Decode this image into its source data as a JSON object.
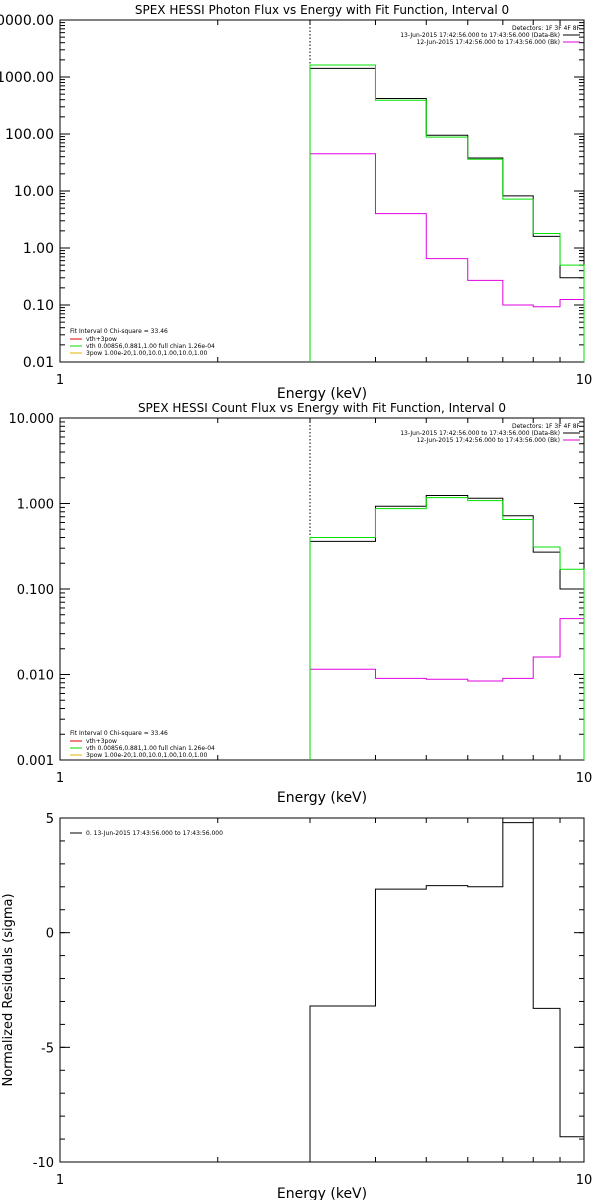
{
  "colors": {
    "bg": "#ffffff",
    "axis": "#000000",
    "data": "#000000",
    "background_series": "#e000e0",
    "model": "#00e000",
    "vth_legend": "#e00000",
    "spow_legend": "#e0b000"
  },
  "chart_data": [
    {
      "type": "line",
      "scale": "log-log",
      "title": "SPEX HESSI Photon Flux vs Energy with Fit Function, Interval 0",
      "xlabel": "Energy (keV)",
      "ylabel": "",
      "xlim": [
        1,
        10
      ],
      "ylim": [
        0.01,
        10000
      ],
      "xticks": [
        "1",
        "10"
      ],
      "yticks": [
        "0.01",
        "0.10",
        "1.00",
        "10.00",
        "100.00",
        "1000.00",
        "10000.00"
      ],
      "vline_x": 3.0,
      "legend_top": [
        "Detectors: 1F 3F 4F 8F",
        "13-Jun-2015 17:42:56.000 to 17:43:56.000 (Data-Bk)",
        "12-Jun-2015 17:42:56.000 to 17:43:56.000 (Bk)"
      ],
      "legend_bottom": [
        "Fit Interval 0   Chi-square = 33.46",
        "vth+3pow",
        "vth 0.00856,0.881,1.00  full chian 1.26e-04",
        "3pow 1.00e-20,1.00,10.0,1.00,10.0,1.00"
      ],
      "edges": [
        3.0,
        3.5,
        4.0,
        4.5,
        5.0,
        5.5,
        6.0,
        6.5,
        7.0,
        7.5,
        8.0,
        8.5,
        9.0,
        10.0
      ],
      "series": [
        {
          "name": "13-Jun-2015 17:42:56.000 to 17:43:56.000 (Data-Bk)",
          "color": "#000000",
          "values": [
            1420,
            1420,
            420,
            420,
            95,
            95,
            38,
            38,
            8.2,
            8.2,
            1.6,
            1.6,
            0.3
          ]
        },
        {
          "name": "12-Jun-2015 17:42:56.000 to 17:43:56.000 (Bk)",
          "color": "#e000e0",
          "values": [
            45,
            45,
            4.0,
            4.0,
            0.65,
            0.65,
            0.27,
            0.27,
            0.1,
            0.1,
            0.093,
            0.093,
            0.125
          ]
        },
        {
          "name": "vth 0.00856,0.881,1.00  full chian 1.26e-04",
          "color": "#00e000",
          "values": [
            1620,
            1620,
            390,
            390,
            88,
            88,
            36,
            36,
            7.2,
            7.2,
            1.8,
            1.8,
            0.5
          ]
        }
      ]
    },
    {
      "type": "line",
      "scale": "log-log",
      "title": "SPEX HESSI Count Flux vs Energy with Fit Function, Interval 0",
      "xlabel": "Energy (keV)",
      "ylabel": "",
      "xlim": [
        1,
        10
      ],
      "ylim": [
        0.001,
        10
      ],
      "xticks": [
        "1",
        "10"
      ],
      "yticks": [
        "0.001",
        "0.010",
        "0.100",
        "1.000",
        "10.000"
      ],
      "vline_x": 3.0,
      "legend_top": [
        "Detectors: 1F 3F 4F 8F",
        "13-Jun-2015 17:42:56.000 to 17:43:56.000 (Data-Bk)",
        "12-Jun-2015 17:42:56.000 to 17:43:56.000 (Bk)"
      ],
      "legend_bottom": [
        "Fit Interval 0   Chi-square = 33.46",
        "vth+3pow",
        "vth 0.00856,0.881,1.00  full chian 1.26e-04",
        "3pow 1.00e-20,1.00,10.0,1.00,10.0,1.00"
      ],
      "edges": [
        3.0,
        4.0,
        5.0,
        6.0,
        7.0,
        8.0,
        9.0,
        10.0
      ],
      "series": [
        {
          "name": "13-Jun-2015 17:42:56.000 to 17:43:56.000 (Data-Bk)",
          "color": "#000000",
          "values": [
            0.36,
            0.93,
            1.24,
            1.15,
            0.72,
            0.27,
            0.1
          ]
        },
        {
          "name": "12-Jun-2015 17:42:56.000 to 17:43:56.000 (Bk)",
          "color": "#e000e0",
          "values": [
            0.0115,
            0.009,
            0.0088,
            0.0084,
            0.009,
            0.016,
            0.045
          ]
        },
        {
          "name": "vth 0.00856,0.881,1.00  full chian 1.26e-04",
          "color": "#00e000",
          "values": [
            0.4,
            0.87,
            1.17,
            1.08,
            0.65,
            0.31,
            0.17
          ]
        }
      ]
    },
    {
      "type": "line",
      "scale": "log-x",
      "title": "",
      "xlabel": "Energy (keV)",
      "ylabel": "Normalized Residuals (sigma)",
      "xlim": [
        1,
        10
      ],
      "ylim": [
        -10,
        5
      ],
      "xticks": [
        "1",
        "10"
      ],
      "yticks": [
        "-10",
        "-5",
        "0",
        "5"
      ],
      "legend_top": [
        "0. 13-Jun-2015 17:43:56.000 to 17:43:56.000"
      ],
      "edges": [
        3.0,
        4.0,
        5.0,
        6.0,
        7.0,
        8.0,
        9.0,
        10.0
      ],
      "series": [
        {
          "name": "0. 13-Jun-2015 17:43:56.000 to 17:43:56.000",
          "color": "#000000",
          "values": [
            -3.2,
            1.9,
            2.05,
            2.0,
            4.8,
            -3.3,
            -8.9
          ]
        }
      ]
    }
  ]
}
